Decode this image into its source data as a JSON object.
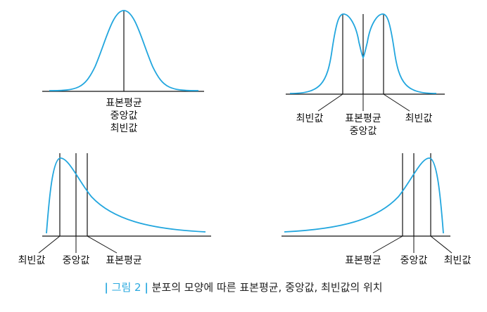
{
  "colors": {
    "curve": "#22a6de",
    "axis": "#111111",
    "caption_accent": "#2aa9df"
  },
  "panels": {
    "symmetric": {
      "label_mean_median_mode": [
        "표본평균",
        "중앙값",
        "최빈값"
      ]
    },
    "bimodal": {
      "label_mode_left": "최빈값",
      "label_center": [
        "표본평균",
        "중앙값"
      ],
      "label_mode_right": "최빈값"
    },
    "right_skewed": {
      "label_mode": "최빈값",
      "label_median": "중앙값",
      "label_mean": "표본평균"
    },
    "left_skewed": {
      "label_mean": "표본평균",
      "label_median": "중앙값",
      "label_mode": "최빈값"
    }
  },
  "caption": {
    "bar": "|",
    "tag": "그림 2",
    "text": "분포의 모양에 따른 표본평균, 중앙값, 최빈값의 위치"
  }
}
